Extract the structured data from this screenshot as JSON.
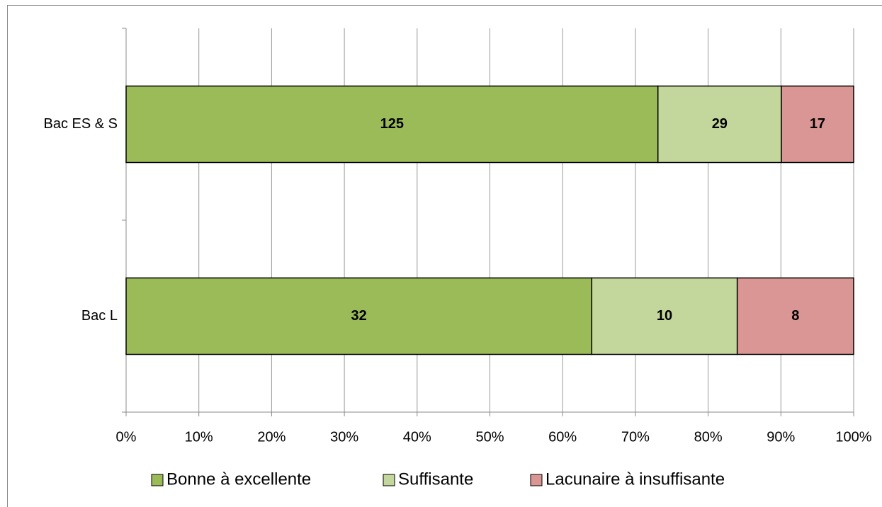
{
  "chart_data": {
    "type": "bar",
    "orientation": "horizontal",
    "stacking": "percent",
    "categories": [
      "Bac ES & S",
      "Bac L"
    ],
    "series": [
      {
        "name": "Bonne à excellente",
        "color": "#9bbb59",
        "values": [
          125,
          32
        ]
      },
      {
        "name": "Suffisante",
        "color": "#c3d69b",
        "values": [
          29,
          10
        ]
      },
      {
        "name": "Lacunaire à insuffisante",
        "color": "#d99694",
        "values": [
          17,
          8
        ]
      }
    ],
    "xlim": [
      0,
      100
    ],
    "xticks": [
      {
        "value": 0,
        "label": "0%"
      },
      {
        "value": 10,
        "label": "10%"
      },
      {
        "value": 20,
        "label": "20%"
      },
      {
        "value": 30,
        "label": "30%"
      },
      {
        "value": 40,
        "label": "40%"
      },
      {
        "value": 50,
        "label": "50%"
      },
      {
        "value": 60,
        "label": "60%"
      },
      {
        "value": 70,
        "label": "70%"
      },
      {
        "value": 80,
        "label": "80%"
      },
      {
        "value": 90,
        "label": "90%"
      },
      {
        "value": 100,
        "label": "100%"
      }
    ],
    "grid": true,
    "legend": "bottom"
  }
}
